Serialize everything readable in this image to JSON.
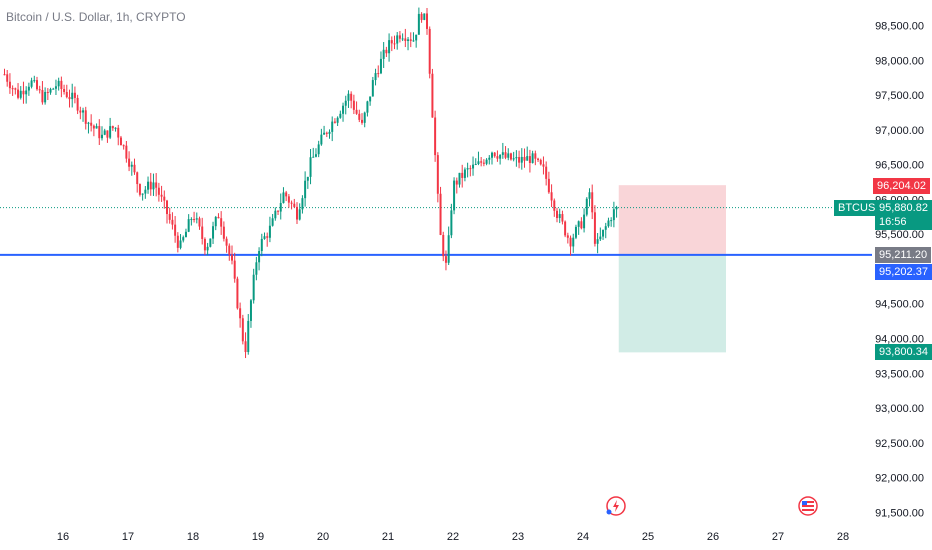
{
  "header": {
    "title": "Bitcoin / U.S. Dollar, 1h, CRYPTO"
  },
  "price_scale": {
    "ticks": [
      "98,500.00",
      "98,000.00",
      "97,500.00",
      "97,000.00",
      "96,500.00",
      "96,000.00",
      "95,500.00",
      "95,000.00",
      "94,500.00",
      "94,000.00",
      "93,500.00",
      "93,000.00",
      "92,500.00",
      "92,000.00",
      "91,500.00"
    ]
  },
  "time_scale": {
    "ticks": [
      "16",
      "17",
      "18",
      "19",
      "20",
      "21",
      "22",
      "23",
      "24",
      "25",
      "26",
      "27",
      "28"
    ]
  },
  "tags": {
    "stop_loss": "96,204.02",
    "symbol": "BTCUSD",
    "last_price": "95,880.82",
    "countdown": "16:56",
    "entry": "95,211.20",
    "line_level": "95,202.37",
    "take_profit": "93,800.34"
  },
  "colors": {
    "up": "#089981",
    "down": "#f23645",
    "line": "#2962ff",
    "loss_zone": "#f9d5d8",
    "profit_zone": "#d1ece6",
    "entry_tag": "#787b86"
  },
  "chart_data": {
    "type": "candlestick",
    "symbol": "BTCUSD",
    "timeframe": "1h",
    "ylim": [
      91400,
      98800
    ],
    "horizontal_line": 95202.37,
    "position": {
      "entry": 95211.2,
      "stop": 96204.02,
      "target": 93800.34
    },
    "close_path": [
      [
        15.1,
        97800
      ],
      [
        15.3,
        97500
      ],
      [
        15.5,
        97700
      ],
      [
        15.7,
        97450
      ],
      [
        15.9,
        97650
      ],
      [
        16.2,
        97400
      ],
      [
        16.4,
        97100
      ],
      [
        16.6,
        96900
      ],
      [
        16.8,
        97050
      ],
      [
        17.0,
        96600
      ],
      [
        17.2,
        96100
      ],
      [
        17.4,
        96250
      ],
      [
        17.6,
        95800
      ],
      [
        17.8,
        95300
      ],
      [
        18.0,
        95800
      ],
      [
        18.2,
        95300
      ],
      [
        18.4,
        95800
      ],
      [
        18.6,
        95050
      ],
      [
        18.7,
        94400
      ],
      [
        18.8,
        93800
      ],
      [
        18.9,
        94600
      ],
      [
        19.0,
        95300
      ],
      [
        19.2,
        95600
      ],
      [
        19.4,
        96100
      ],
      [
        19.6,
        95800
      ],
      [
        19.8,
        96500
      ],
      [
        20.0,
        96900
      ],
      [
        20.2,
        97200
      ],
      [
        20.4,
        97500
      ],
      [
        20.6,
        97050
      ],
      [
        20.8,
        97800
      ],
      [
        21.0,
        98200
      ],
      [
        21.2,
        98400
      ],
      [
        21.4,
        98300
      ],
      [
        21.5,
        98700
      ],
      [
        21.6,
        98500
      ],
      [
        21.7,
        97000
      ],
      [
        21.8,
        95500
      ],
      [
        21.9,
        95000
      ],
      [
        22.0,
        96200
      ],
      [
        22.2,
        96400
      ],
      [
        22.4,
        96500
      ],
      [
        22.6,
        96700
      ],
      [
        22.8,
        96600
      ],
      [
        23.0,
        96550
      ],
      [
        23.2,
        96600
      ],
      [
        23.4,
        96400
      ],
      [
        23.6,
        95800
      ],
      [
        23.8,
        95400
      ],
      [
        24.0,
        95700
      ],
      [
        24.1,
        96100
      ],
      [
        24.2,
        95300
      ],
      [
        24.3,
        95500
      ],
      [
        24.45,
        95800
      ],
      [
        24.55,
        95880.82
      ]
    ]
  }
}
